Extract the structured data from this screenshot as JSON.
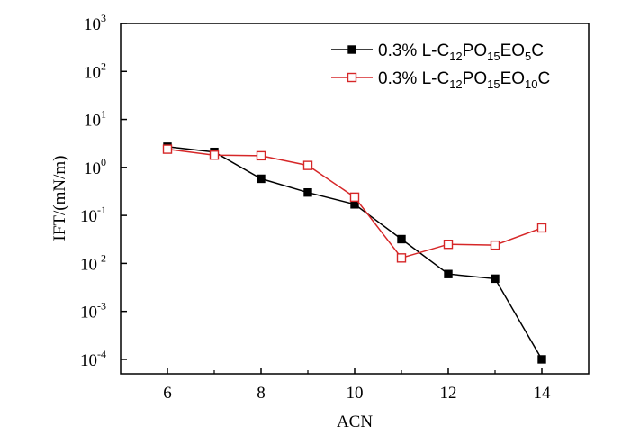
{
  "chart_data": {
    "type": "line",
    "title": "",
    "xlabel": "ACN",
    "ylabel": "IFT/(mN/m)",
    "xlim": [
      5,
      15
    ],
    "ylim": [
      5e-05,
      1000
    ],
    "y_scale": "log",
    "grid": false,
    "legend_position": "top-right",
    "x_ticks": [
      {
        "value": 6,
        "label": "6"
      },
      {
        "value": 8,
        "label": "8"
      },
      {
        "value": 10,
        "label": "10"
      },
      {
        "value": 12,
        "label": "12"
      },
      {
        "value": 14,
        "label": "14"
      }
    ],
    "y_ticks": [
      {
        "value": 0.0001,
        "base": "10",
        "exp": "-4"
      },
      {
        "value": 0.001,
        "base": "10",
        "exp": "-3"
      },
      {
        "value": 0.01,
        "base": "10",
        "exp": "-2"
      },
      {
        "value": 0.1,
        "base": "10",
        "exp": "-1"
      },
      {
        "value": 1,
        "base": "10",
        "exp": "0"
      },
      {
        "value": 10,
        "base": "10",
        "exp": "1"
      },
      {
        "value": 100,
        "base": "10",
        "exp": "2"
      },
      {
        "value": 1000,
        "base": "10",
        "exp": "3"
      }
    ],
    "series": [
      {
        "name": "0.3% L-C12PO15EO5C",
        "label_parts": [
          {
            "t": "0.3% L-C",
            "sub": false
          },
          {
            "t": "12",
            "sub": true
          },
          {
            "t": "PO",
            "sub": false
          },
          {
            "t": "15",
            "sub": true
          },
          {
            "t": "EO",
            "sub": false
          },
          {
            "t": "5",
            "sub": true
          },
          {
            "t": "C",
            "sub": false
          }
        ],
        "color": "#000000",
        "marker": "filled-square",
        "x": [
          6,
          7,
          8,
          9,
          10,
          11,
          12,
          13,
          14
        ],
        "y": [
          2.7,
          2.1,
          0.58,
          0.3,
          0.17,
          0.032,
          0.006,
          0.0048,
          0.0001
        ]
      },
      {
        "name": "0.3% L-C12PO15EO10C",
        "label_parts": [
          {
            "t": "0.3% L-C",
            "sub": false
          },
          {
            "t": "12",
            "sub": true
          },
          {
            "t": "PO",
            "sub": false
          },
          {
            "t": "15",
            "sub": true
          },
          {
            "t": "EO",
            "sub": false
          },
          {
            "t": "10",
            "sub": true
          },
          {
            "t": "C",
            "sub": false
          }
        ],
        "color": "#d62728",
        "marker": "open-square",
        "x": [
          6,
          7,
          8,
          9,
          10,
          11,
          12,
          13,
          14
        ],
        "y": [
          2.4,
          1.8,
          1.75,
          1.1,
          0.24,
          0.013,
          0.025,
          0.024,
          0.055
        ]
      }
    ]
  }
}
